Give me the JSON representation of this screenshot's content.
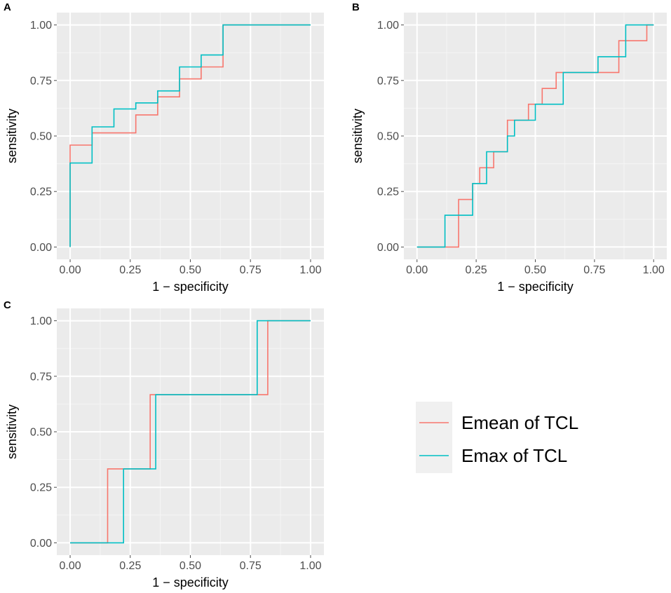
{
  "colors": {
    "panel_bg": "#ebebeb",
    "grid_major": "#ffffff",
    "grid_minor": "#f5f5f5",
    "tick": "#4d4d4d",
    "legend_bg": "#f0f0f0"
  },
  "legend": {
    "entries": [
      {
        "label": "Emean of TCL",
        "color": "#F8766D"
      },
      {
        "label": "Emax of TCL",
        "color": "#00BFC4"
      }
    ]
  },
  "chart_data": [
    {
      "panel": "A",
      "type": "line",
      "step": true,
      "xlabel": "1 − specificity",
      "ylabel": "sensitivity",
      "xlim": [
        0,
        1
      ],
      "ylim": [
        0,
        1
      ],
      "xticks": [
        "0.00",
        "0.25",
        "0.50",
        "0.75",
        "1.00"
      ],
      "yticks": [
        "0.00",
        "0.25",
        "0.50",
        "0.75",
        "1.00"
      ],
      "series": [
        {
          "name": "Emean of TCL",
          "color": "#F8766D",
          "x": [
            0,
            0,
            0.091,
            0.091,
            0.273,
            0.273,
            0.364,
            0.364,
            0.455,
            0.455,
            0.545,
            0.545,
            0.636,
            0.636,
            1
          ],
          "y": [
            0,
            0.459,
            0.459,
            0.514,
            0.514,
            0.595,
            0.595,
            0.676,
            0.676,
            0.757,
            0.757,
            0.811,
            0.811,
            1,
            1
          ]
        },
        {
          "name": "Emax of TCL",
          "color": "#00BFC4",
          "x": [
            0,
            0,
            0.091,
            0.091,
            0.182,
            0.182,
            0.273,
            0.273,
            0.364,
            0.364,
            0.455,
            0.455,
            0.545,
            0.545,
            0.636,
            0.636,
            1
          ],
          "y": [
            0,
            0.378,
            0.378,
            0.541,
            0.541,
            0.622,
            0.622,
            0.649,
            0.649,
            0.703,
            0.703,
            0.811,
            0.811,
            0.865,
            0.865,
            1,
            1
          ]
        }
      ]
    },
    {
      "panel": "B",
      "type": "line",
      "step": true,
      "xlabel": "1 − specificity",
      "ylabel": "sensitivity",
      "xlim": [
        0,
        1
      ],
      "ylim": [
        0,
        1
      ],
      "xticks": [
        "0.00",
        "0.25",
        "0.50",
        "0.75",
        "1.00"
      ],
      "yticks": [
        "0.00",
        "0.25",
        "0.50",
        "0.75",
        "1.00"
      ],
      "series": [
        {
          "name": "Emean of TCL",
          "color": "#F8766D",
          "x": [
            0,
            0.176,
            0.176,
            0.235,
            0.235,
            0.265,
            0.265,
            0.324,
            0.324,
            0.382,
            0.382,
            0.471,
            0.471,
            0.529,
            0.529,
            0.588,
            0.588,
            0.853,
            0.853,
            0.971,
            0.971,
            1
          ],
          "y": [
            0,
            0,
            0.214,
            0.214,
            0.286,
            0.286,
            0.357,
            0.357,
            0.429,
            0.429,
            0.571,
            0.571,
            0.643,
            0.643,
            0.714,
            0.714,
            0.786,
            0.786,
            0.929,
            0.929,
            1,
            1
          ]
        },
        {
          "name": "Emax of TCL",
          "color": "#00BFC4",
          "x": [
            0,
            0.118,
            0.118,
            0.235,
            0.235,
            0.294,
            0.294,
            0.382,
            0.382,
            0.412,
            0.412,
            0.5,
            0.5,
            0.618,
            0.618,
            0.765,
            0.765,
            0.882,
            0.882,
            1
          ],
          "y": [
            0,
            0,
            0.143,
            0.143,
            0.286,
            0.286,
            0.429,
            0.429,
            0.5,
            0.5,
            0.571,
            0.571,
            0.643,
            0.643,
            0.786,
            0.786,
            0.857,
            0.857,
            1,
            1
          ]
        }
      ]
    },
    {
      "panel": "C",
      "type": "line",
      "step": true,
      "xlabel": "1 − specificity",
      "ylabel": "sensitivity",
      "xlim": [
        0,
        1
      ],
      "ylim": [
        0,
        1
      ],
      "xticks": [
        "0.00",
        "0.25",
        "0.50",
        "0.75",
        "1.00"
      ],
      "yticks": [
        "0.00",
        "0.25",
        "0.50",
        "0.75",
        "1.00"
      ],
      "series": [
        {
          "name": "Emean of TCL",
          "color": "#F8766D",
          "x": [
            0,
            0.156,
            0.156,
            0.333,
            0.333,
            0.822,
            0.822,
            1
          ],
          "y": [
            0,
            0,
            0.333,
            0.333,
            0.667,
            0.667,
            1,
            1
          ]
        },
        {
          "name": "Emax of TCL",
          "color": "#00BFC4",
          "x": [
            0,
            0.222,
            0.222,
            0.356,
            0.356,
            0.778,
            0.778,
            1
          ],
          "y": [
            0,
            0,
            0.333,
            0.333,
            0.667,
            0.667,
            1,
            1
          ]
        }
      ]
    }
  ]
}
